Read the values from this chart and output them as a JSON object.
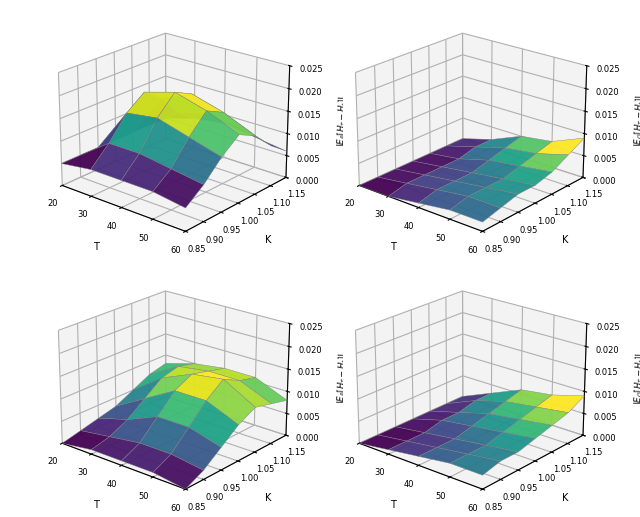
{
  "T_values": [
    20,
    30,
    40,
    50,
    60
  ],
  "K_values": [
    0.85,
    0.9,
    0.95,
    1.0,
    1.05,
    1.1,
    1.15
  ],
  "zlim": [
    0.0,
    0.025
  ],
  "zticks": [
    0.0,
    0.005,
    0.01,
    0.015,
    0.02,
    0.025
  ],
  "xlabel": "T",
  "ylabel": "K",
  "cmap": "viridis",
  "elev": 22,
  "azim": -50,
  "Z1": [
    [
      0.005,
      0.005,
      0.005,
      0.005,
      0.005,
      0.005,
      0.005
    ],
    [
      0.006,
      0.01,
      0.015,
      0.018,
      0.015,
      0.01,
      0.007
    ],
    [
      0.006,
      0.01,
      0.016,
      0.02,
      0.018,
      0.012,
      0.008
    ],
    [
      0.006,
      0.009,
      0.014,
      0.018,
      0.016,
      0.011,
      0.007
    ],
    [
      0.005,
      0.008,
      0.012,
      0.015,
      0.013,
      0.009,
      0.006
    ]
  ],
  "Z2": [
    [
      0.0,
      0.0,
      0.0,
      0.0,
      0.0,
      0.0,
      0.0
    ],
    [
      0.0,
      0.001,
      0.001,
      0.001,
      0.001,
      0.002,
      0.002
    ],
    [
      0.001,
      0.002,
      0.002,
      0.002,
      0.003,
      0.004,
      0.005
    ],
    [
      0.002,
      0.003,
      0.003,
      0.003,
      0.004,
      0.005,
      0.006
    ],
    [
      0.002,
      0.003,
      0.004,
      0.004,
      0.005,
      0.007,
      0.009
    ]
  ],
  "Z3": [
    [
      0.0,
      0.001,
      0.002,
      0.003,
      0.005,
      0.007,
      0.008
    ],
    [
      0.001,
      0.002,
      0.004,
      0.007,
      0.01,
      0.011,
      0.01
    ],
    [
      0.001,
      0.003,
      0.007,
      0.011,
      0.013,
      0.012,
      0.011
    ],
    [
      0.001,
      0.003,
      0.007,
      0.011,
      0.014,
      0.012,
      0.011
    ],
    [
      0.0,
      0.002,
      0.005,
      0.008,
      0.01,
      0.009,
      0.008
    ]
  ],
  "Z4": [
    [
      0.0,
      0.0,
      0.0,
      0.0,
      0.0,
      0.0,
      0.0
    ],
    [
      0.001,
      0.001,
      0.001,
      0.002,
      0.002,
      0.003,
      0.003
    ],
    [
      0.002,
      0.002,
      0.002,
      0.003,
      0.004,
      0.005,
      0.006
    ],
    [
      0.003,
      0.003,
      0.003,
      0.004,
      0.005,
      0.006,
      0.007
    ],
    [
      0.003,
      0.004,
      0.004,
      0.005,
      0.006,
      0.007,
      0.009
    ]
  ],
  "zlabels": [
    "$|E_P[H_T - H_t]|$",
    "$|E_Q[H_T - H_t]|$",
    "$|E_P[H_T - H_t]|$",
    "$|E_Q[H_T - H_t]|$"
  ],
  "figsize": [
    6.4,
    5.17
  ],
  "dpi": 100
}
